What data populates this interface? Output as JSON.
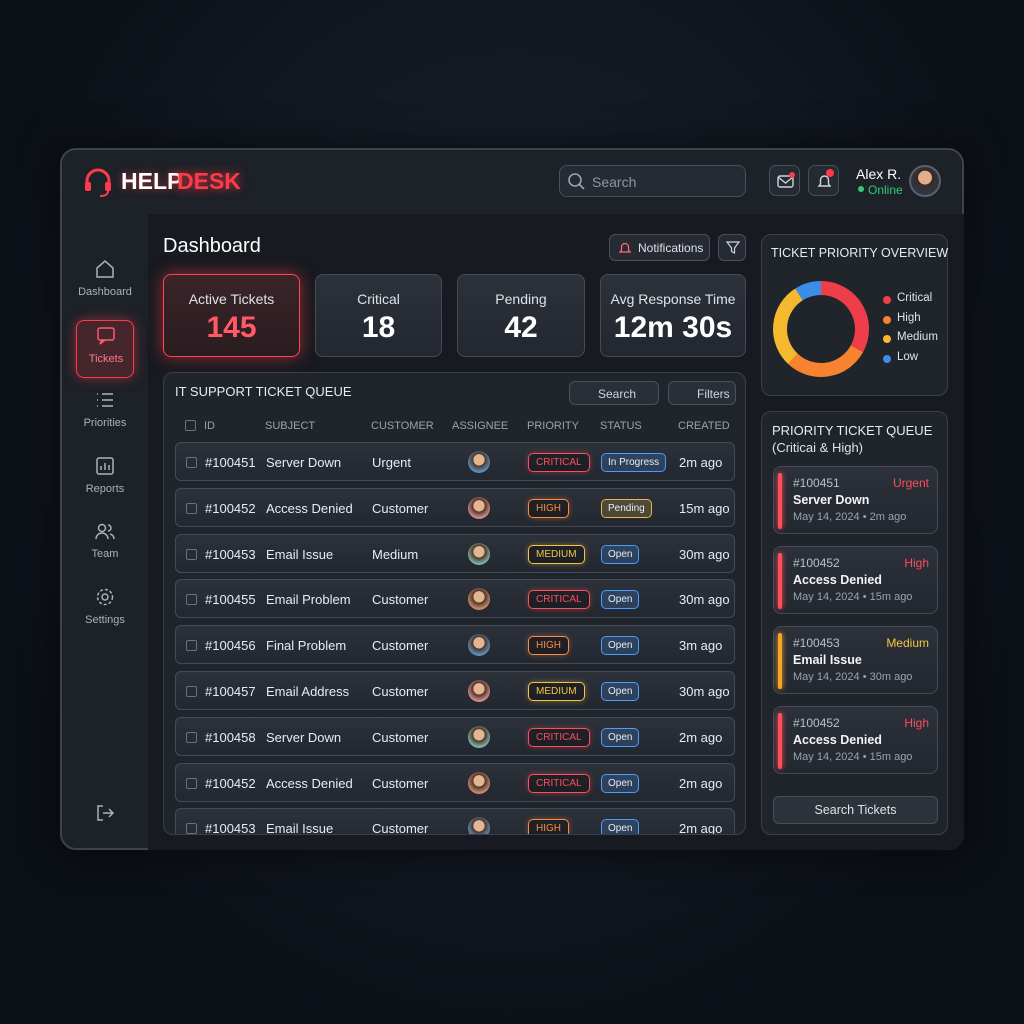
{
  "header": {
    "logo_a": "HELP",
    "logo_b": "DESK",
    "search": "Search",
    "user": "Alex R.",
    "status": "Online"
  },
  "nav": [
    "Dashboard",
    "Tickets",
    "Priorities",
    "Reports",
    "Team",
    "Settings"
  ],
  "page_title": "Dashboard",
  "toolbar": {
    "notifications": "Notifications"
  },
  "stats": [
    {
      "label": "Active Tickets",
      "value": 145
    },
    {
      "label": "Critical",
      "value": 18
    },
    {
      "label": "Pending",
      "value": 42
    },
    {
      "label": "Avg Response Time",
      "value": "12m 30s"
    }
  ],
  "queue": {
    "title": "IT SUPPORT TICKET QUEUE",
    "search": "Search",
    "filters": "Filters",
    "columns": [
      "ID",
      "SUBJECT",
      "CUSTOMER",
      "ASSIGNEE",
      "PRIORITY",
      "STATUS",
      "CREATED"
    ],
    "rows": [
      {
        "id": "#100451",
        "subject": "Server Down",
        "customer": "Urgent",
        "priority": "CRITICAL",
        "priority_color": "#ff4d5a",
        "status": "In Progress",
        "status_color": "#4a9cff",
        "created": "2m ago"
      },
      {
        "id": "#100452",
        "subject": "Access Denied",
        "customer": "Customer",
        "priority": "HIGH",
        "priority_color": "#ff8a3d",
        "status": "Pending",
        "status_color": "#e6b84a",
        "created": "15m ago"
      },
      {
        "id": "#100453",
        "subject": "Email Issue",
        "customer": "Medium",
        "priority": "MEDIUM",
        "priority_color": "#f5c542",
        "status": "Open",
        "status_color": "#4a9cff",
        "created": "30m ago"
      },
      {
        "id": "#100455",
        "subject": "Email Problem",
        "customer": "Customer",
        "priority": "CRITICAL",
        "priority_color": "#ff4d5a",
        "status": "Open",
        "status_color": "#4a9cff",
        "created": "30m ago"
      },
      {
        "id": "#100456",
        "subject": "Final Problem",
        "customer": "Customer",
        "priority": "HIGH",
        "priority_color": "#ff8a3d",
        "status": "Open",
        "status_color": "#4a9cff",
        "created": "3m ago"
      },
      {
        "id": "#100457",
        "subject": "Email Address",
        "customer": "Customer",
        "priority": "MEDIUM",
        "priority_color": "#f5c542",
        "status": "Open",
        "status_color": "#4a9cff",
        "created": "30m ago"
      },
      {
        "id": "#100458",
        "subject": "Server Down",
        "customer": "Customer",
        "priority": "CRITICAL",
        "priority_color": "#ff4d5a",
        "status": "Open",
        "status_color": "#4a9cff",
        "created": "2m ago"
      },
      {
        "id": "#100452",
        "subject": "Access Denied",
        "customer": "Customer",
        "priority": "CRITICAL",
        "priority_color": "#ff4d5a",
        "status": "Open",
        "status_color": "#4a9cff",
        "created": "2m ago"
      },
      {
        "id": "#100453",
        "subject": "Email Issue",
        "customer": "Customer",
        "priority": "HIGH",
        "priority_color": "#ff8a3d",
        "status": "Open",
        "status_color": "#4a9cff",
        "created": "2m ago"
      }
    ]
  },
  "overview": {
    "title": "TICKET PRIORITY OVERVIEW",
    "segments": [
      {
        "name": "Critical",
        "color": "#ef3e4a",
        "value": 33
      },
      {
        "name": "High",
        "color": "#f7822f",
        "value": 29
      },
      {
        "name": "Medium",
        "color": "#f5b82e",
        "value": 29
      },
      {
        "name": "Low",
        "color": "#3b8de8",
        "value": 9
      }
    ]
  },
  "priority_queue": {
    "title": "PRIORITY TICKET QUEUE",
    "subtitle": "(Criticai & High)",
    "button": "Search Tickets",
    "items": [
      {
        "id": "#100451",
        "level": "Urgent",
        "color": "#ff4d5a",
        "subject": "Server Down",
        "meta": "May 14, 2024 • 2m ago"
      },
      {
        "id": "#100452",
        "level": "High",
        "color": "#ff4d5a",
        "subject": "Access Denied",
        "meta": "May 14, 2024 • 15m ago"
      },
      {
        "id": "#100453",
        "level": "Medium",
        "color": "#f5a623",
        "subject": "Email Issue",
        "meta": "May 14, 2024 • 30m ago"
      },
      {
        "id": "#100452",
        "level": "High",
        "color": "#ff4d5a",
        "subject": "Access Denied",
        "meta": "May 14, 2024 • 15m ago"
      }
    ]
  }
}
